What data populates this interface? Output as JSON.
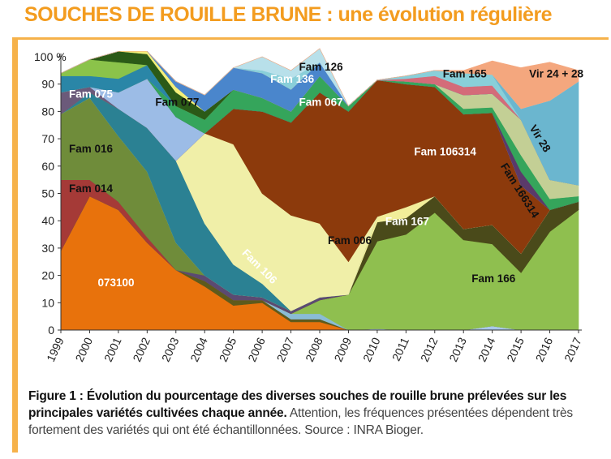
{
  "header": {
    "title": "SOUCHES DE ROUILLE BRUNE : une évolution régulière"
  },
  "colors": {
    "accent": "#f39c1f",
    "rule": "#f6b24a"
  },
  "caption": {
    "bold": "Figure 1 : Évolution du pourcentage des diverses souches de rouille brune prélevées sur les principales variétés cultivées chaque année.",
    "plain": "Attention, les fréquences présentées dépendent très fortement des variétés qui ont été échantillonnées. Source : INRA Bioger."
  },
  "chart_data": {
    "type": "area",
    "stacked": true,
    "x": [
      "1999",
      "2000",
      "2001",
      "2002",
      "2003",
      "2004",
      "2005",
      "2006",
      "2007",
      "2008",
      "2009",
      "2010",
      "2011",
      "2012",
      "2013",
      "2014",
      "2015",
      "2016",
      "2017"
    ],
    "ylim": [
      0,
      100
    ],
    "yticks": [
      0,
      10,
      20,
      30,
      40,
      50,
      60,
      70,
      80,
      90,
      100
    ],
    "ytick_labels": [
      "0",
      "10",
      "20",
      "30",
      "40",
      "50",
      "60",
      "70",
      "80",
      "90",
      "100 %"
    ],
    "grid": false,
    "legend": "none (labels inside areas)",
    "series": [
      {
        "name": "",
        "color": "#a8c8ea",
        "values": [
          0,
          0,
          0,
          0,
          0,
          0,
          0,
          0,
          0,
          0,
          0,
          0.5,
          0,
          0,
          0,
          1.5,
          0,
          0,
          0
        ]
      },
      {
        "name": "073100",
        "color": "#e8720c",
        "values": [
          29,
          49,
          44,
          32,
          22,
          16,
          9,
          10,
          3,
          3,
          0,
          0,
          0,
          0,
          0,
          0,
          0,
          0,
          0
        ]
      },
      {
        "name": "",
        "color": "#5e5a1c",
        "values": [
          0,
          0,
          0,
          0,
          0,
          2,
          2,
          1,
          1,
          1,
          0,
          0,
          0,
          0,
          0,
          0,
          0,
          0,
          0
        ]
      },
      {
        "name": "",
        "color": "#8abcd4",
        "values": [
          0,
          0,
          0,
          0,
          0,
          0,
          0,
          0,
          2,
          2,
          0,
          0,
          0,
          0,
          0,
          0,
          0,
          0,
          0
        ]
      },
      {
        "name": "Fam 166",
        "color": "#8fbf4f",
        "values": [
          0,
          0,
          0,
          0,
          0,
          0,
          0,
          0,
          0,
          5,
          13,
          32,
          35,
          43,
          33,
          30,
          21,
          36,
          44
        ]
      },
      {
        "name": "",
        "color": "#4a4a1a",
        "values": [
          0,
          0,
          0,
          0,
          0,
          0,
          0,
          0,
          0,
          0,
          0,
          7,
          6,
          6,
          4,
          7,
          7,
          8,
          3
        ]
      },
      {
        "name": "Fam 014",
        "color": "#a53a37",
        "values": [
          26,
          6,
          3,
          2,
          0,
          0,
          0,
          0,
          0,
          0,
          0,
          0,
          0,
          0,
          0,
          0,
          0,
          0,
          0
        ]
      },
      {
        "name": "",
        "color": "#5b4a72",
        "values": [
          0,
          0,
          0,
          0,
          0,
          2,
          2,
          1,
          1,
          1,
          0,
          0,
          0,
          0,
          0,
          0,
          0,
          0,
          0
        ]
      },
      {
        "name": "Fam 016",
        "color": "#6f8c3a",
        "values": [
          24,
          30,
          24,
          24,
          10,
          0,
          0,
          0,
          0,
          0,
          0,
          0,
          0,
          0,
          0,
          0,
          0,
          0,
          0
        ]
      },
      {
        "name": "Fam 167",
        "color": "#f2ee9a",
        "values": [
          0,
          0,
          0,
          0,
          0,
          0,
          0,
          0,
          0,
          0,
          0,
          2,
          4,
          0,
          0,
          0,
          0,
          0,
          0
        ]
      },
      {
        "name": "Fam 106",
        "color": "#2b8193",
        "values": [
          0,
          2,
          10,
          16,
          30,
          19,
          11,
          5,
          0,
          0,
          0,
          0,
          0,
          0,
          0,
          0,
          0,
          0,
          0
        ]
      },
      {
        "name": "Fam 006",
        "color": "#f0efa8",
        "values": [
          0,
          0,
          0,
          0,
          0,
          33,
          44,
          33,
          35,
          27,
          12,
          0,
          0,
          0,
          0,
          0,
          0,
          0,
          0
        ]
      },
      {
        "name": "Fam 106314",
        "color": "#8c3a0c",
        "values": [
          0,
          0,
          0,
          0,
          0,
          0,
          13,
          30,
          34,
          48,
          55,
          50,
          45,
          40,
          42,
          41,
          25,
          0,
          0
        ]
      },
      {
        "name": "",
        "color": "#6b5a7a",
        "values": [
          8,
          2,
          0,
          0,
          0,
          0,
          0,
          0,
          0,
          0,
          0,
          0,
          0,
          0,
          0,
          0,
          0,
          0,
          0
        ]
      },
      {
        "name": "Fam 077",
        "color": "#9cbce6",
        "values": [
          0,
          0,
          6,
          18,
          16,
          0,
          0,
          0,
          0,
          0,
          0,
          0,
          0,
          0,
          0,
          0,
          0,
          0,
          0
        ]
      },
      {
        "name": "",
        "color": "#5a3a6a",
        "values": [
          0,
          0,
          0,
          0,
          0,
          0,
          0,
          0,
          0,
          0,
          0,
          0,
          0,
          0,
          0,
          0,
          5,
          0,
          0
        ]
      },
      {
        "name": "Fam 067",
        "color": "#35a55b",
        "values": [
          0,
          0,
          0,
          0,
          4,
          5,
          7,
          5,
          4,
          6,
          2,
          0,
          1,
          1,
          2,
          2,
          6,
          4,
          2
        ]
      },
      {
        "name": "Fam 166314",
        "color": "#c3cf95",
        "values": [
          0,
          0,
          0,
          0,
          0,
          0,
          0,
          0,
          0,
          0,
          0,
          0,
          0,
          0,
          5,
          5,
          13,
          7,
          4
        ]
      },
      {
        "name": "Fam 075",
        "color": "#2a86a7",
        "values": [
          6,
          4,
          5,
          5,
          0,
          0,
          0,
          0,
          0,
          0,
          0,
          0,
          0,
          0,
          0,
          0,
          0,
          0,
          0
        ]
      },
      {
        "name": "",
        "color": "#8bc34a",
        "values": [
          1,
          6,
          6,
          0,
          0,
          0,
          0,
          0,
          0,
          0,
          0,
          0,
          0,
          0,
          0,
          0,
          0,
          0,
          0
        ]
      },
      {
        "name": "",
        "color": "#2b5a17",
        "values": [
          0,
          0,
          4,
          4,
          5,
          3,
          0,
          0,
          0,
          0,
          0,
          0,
          0,
          0,
          0,
          0,
          0,
          0,
          0
        ]
      },
      {
        "name": "",
        "color": "#f3ef7a",
        "values": [
          0,
          0,
          0,
          1,
          2,
          0,
          0,
          0,
          0,
          0,
          0,
          0,
          0,
          0,
          0,
          0,
          0,
          0,
          0
        ]
      },
      {
        "name": "",
        "color": "#b58bb0",
        "values": [
          0,
          0,
          0,
          0,
          0,
          0,
          0,
          0,
          0,
          0,
          0,
          0,
          0,
          0,
          0,
          0,
          0,
          0,
          0
        ]
      },
      {
        "name": "Fam 136",
        "color": "#4a86cc",
        "values": [
          0,
          0,
          0,
          0,
          2,
          6,
          8,
          9,
          8,
          5,
          0,
          0,
          0,
          0,
          0,
          0,
          0,
          0,
          0
        ]
      },
      {
        "name": "",
        "color": "#d46b79",
        "values": [
          0,
          0,
          0,
          0,
          0,
          0,
          0,
          0,
          0,
          0,
          0,
          0,
          1,
          3,
          3,
          3,
          0,
          0,
          0
        ]
      },
      {
        "name": "Fam 165",
        "color": "#89cfd9",
        "values": [
          0,
          0,
          0,
          0,
          0,
          0,
          0,
          1,
          4,
          0,
          0,
          0,
          1,
          2,
          5,
          4,
          0,
          0,
          0
        ]
      },
      {
        "name": "Vir 28",
        "color": "#6bb6cf",
        "values": [
          0,
          0,
          0,
          0,
          0,
          0,
          0,
          0,
          0,
          0,
          0,
          0,
          0,
          0,
          0,
          0,
          4,
          29,
          38
        ]
      },
      {
        "name": "Fam 126",
        "color": "#b8e0ea",
        "values": [
          0,
          0,
          0,
          0,
          0,
          0,
          0,
          5,
          3,
          5,
          0,
          0,
          0,
          0,
          0,
          0,
          0,
          0,
          0
        ]
      },
      {
        "name": "Vir 24 + 28",
        "color": "#f4a77e",
        "values": [
          0,
          0,
          0,
          0,
          0,
          0,
          0,
          0,
          0,
          0,
          0,
          0,
          0,
          0,
          1,
          5,
          15,
          14,
          4
        ]
      }
    ],
    "annotations": [
      {
        "text": "073100",
        "x": "2000",
        "y": 16,
        "rotate": 0,
        "color": "#ffffff"
      },
      {
        "text": "Fam 014",
        "x": "1999",
        "y": 50.5,
        "rotate": 0,
        "color": "#111111"
      },
      {
        "text": "Fam 016",
        "x": "1999",
        "y": 65,
        "rotate": 0,
        "color": "#111111"
      },
      {
        "text": "Fam 075",
        "x": "1999",
        "y": 85,
        "rotate": 0,
        "color": "#ffffff"
      },
      {
        "text": "Fam 077",
        "x": "2002",
        "y": 82,
        "rotate": 0,
        "color": "#111111"
      },
      {
        "text": "Fam 106",
        "x": "2005",
        "y": 28,
        "rotate": 45,
        "color": "#ffffff"
      },
      {
        "text": "Fam 006",
        "x": "2008",
        "y": 31.5,
        "rotate": 0,
        "color": "#111111"
      },
      {
        "text": "Fam 136",
        "x": "2006",
        "y": 90.5,
        "rotate": 0,
        "color": "#ffffff"
      },
      {
        "text": "Fam 126",
        "x": "2007",
        "y": 95,
        "rotate": 0,
        "color": "#111111"
      },
      {
        "text": "Fam 067",
        "x": "2007",
        "y": 82,
        "rotate": 0,
        "color": "#ffffff"
      },
      {
        "text": "Fam 106314",
        "x": "2011",
        "y": 64,
        "rotate": 0,
        "color": "#ffffff"
      },
      {
        "text": "Fam 165",
        "x": "2012",
        "y": 92.5,
        "rotate": 0,
        "color": "#111111"
      },
      {
        "text": "Fam 167",
        "x": "2010",
        "y": 38.5,
        "rotate": 0,
        "color": "#ffffff"
      },
      {
        "text": "Fam 166",
        "x": "2013",
        "y": 17.5,
        "rotate": 0,
        "color": "#111111"
      },
      {
        "text": "Vir 24 + 28",
        "x": "2015",
        "y": 92.5,
        "rotate": 0,
        "color": "#111111"
      },
      {
        "text": "Vir 28",
        "x": "2015",
        "y": 74,
        "rotate": 58,
        "color": "#111111"
      },
      {
        "text": "Fam 166314",
        "x": "2014",
        "y": 60,
        "rotate": 58,
        "color": "#111111"
      }
    ]
  }
}
